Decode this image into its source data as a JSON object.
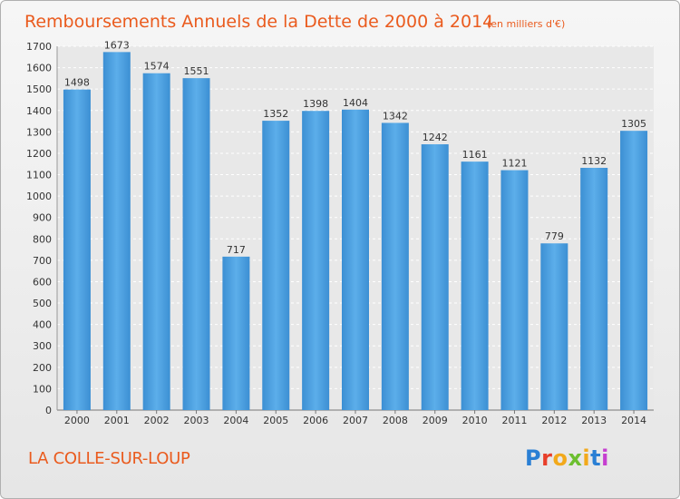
{
  "chart_data": {
    "type": "bar",
    "title": "Remboursements Annuels de la Dette de 2000 à 2014",
    "unit": "(en milliers d'€)",
    "categories": [
      "2000",
      "2001",
      "2002",
      "2003",
      "2004",
      "2005",
      "2006",
      "2007",
      "2008",
      "2009",
      "2010",
      "2011",
      "2012",
      "2013",
      "2014"
    ],
    "values": [
      1498,
      1673,
      1574,
      1551,
      717,
      1352,
      1398,
      1404,
      1342,
      1242,
      1161,
      1121,
      779,
      1132,
      1305
    ],
    "yticks": [
      0,
      100,
      200,
      300,
      400,
      500,
      600,
      700,
      800,
      900,
      1000,
      1100,
      1200,
      1300,
      1400,
      1500,
      1600,
      1700
    ],
    "ylim": [
      0,
      1700
    ],
    "xlabel": "",
    "ylabel": "",
    "grid": true,
    "bar_color": "#4d9fe0",
    "title_color": "#ea5b1e"
  },
  "footer": {
    "commune": "LA COLLE-SUR-LOUP",
    "logo_letters": [
      "P",
      "r",
      "o",
      "x",
      "i",
      "t",
      "i"
    ],
    "logo_colors": [
      "#2a7fd4",
      "#e83f2a",
      "#f2a91b",
      "#6cbf2f",
      "#f2a91b",
      "#2a7fd4",
      "#c63fd0"
    ]
  }
}
